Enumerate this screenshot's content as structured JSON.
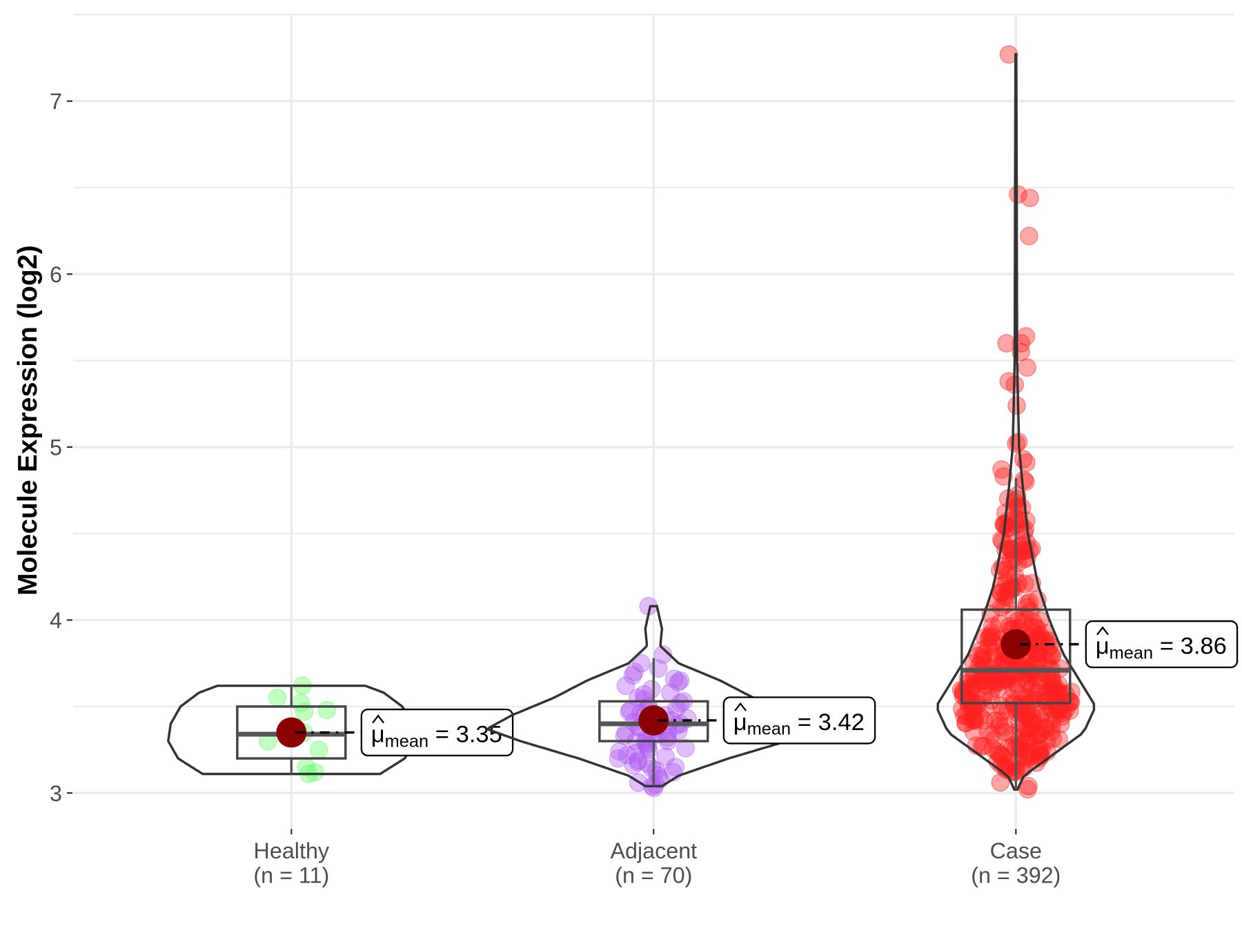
{
  "chart_data": {
    "type": "violin",
    "title": "",
    "xlabel": "",
    "ylabel": "Molecule Expression (log2)",
    "ylim": [
      2.8,
      7.5
    ],
    "yticks": [
      3,
      4,
      5,
      6,
      7
    ],
    "grid": true,
    "groups": [
      {
        "name": "Healthy",
        "n_label": "(n = 11)",
        "color": "#66ff66",
        "mean": 3.35,
        "mean_label": "= 3.35",
        "box": {
          "q1": 3.2,
          "median": 3.34,
          "q3": 3.5,
          "lo": 3.11,
          "hi": 3.62
        },
        "violin_max_halfwidth": 0.34,
        "violin": [
          [
            3.11,
            0.72
          ],
          [
            3.2,
            0.92
          ],
          [
            3.3,
            1.0
          ],
          [
            3.4,
            0.98
          ],
          [
            3.5,
            0.9
          ],
          [
            3.58,
            0.75
          ],
          [
            3.62,
            0.6
          ]
        ],
        "points": [
          3.62,
          3.55,
          3.52,
          3.48,
          3.47,
          3.35,
          3.3,
          3.25,
          3.15,
          3.12,
          3.11
        ],
        "n": 11
      },
      {
        "name": "Adjacent",
        "n_label": "(n = 70)",
        "color": "#b05cf0",
        "mean": 3.42,
        "mean_label": "= 3.42",
        "box": {
          "q1": 3.3,
          "median": 3.4,
          "q3": 3.53,
          "lo": 3.04,
          "hi": 3.78
        },
        "violin_max_halfwidth": 0.46,
        "violin": [
          [
            3.04,
            0.05
          ],
          [
            3.1,
            0.15
          ],
          [
            3.2,
            0.45
          ],
          [
            3.3,
            0.8
          ],
          [
            3.37,
            1.0
          ],
          [
            3.45,
            0.85
          ],
          [
            3.55,
            0.6
          ],
          [
            3.65,
            0.4
          ],
          [
            3.75,
            0.15
          ],
          [
            3.85,
            0.04
          ],
          [
            3.95,
            0.05
          ],
          [
            4.08,
            0.02
          ]
        ],
        "points": [
          4.08,
          3.8,
          3.75,
          3.72,
          3.7,
          3.68,
          3.66,
          3.65,
          3.64,
          3.62,
          3.6,
          3.58,
          3.57,
          3.55,
          3.54,
          3.53,
          3.52,
          3.5,
          3.5,
          3.49,
          3.48,
          3.47,
          3.46,
          3.45,
          3.44,
          3.43,
          3.42,
          3.42,
          3.41,
          3.4,
          3.4,
          3.39,
          3.38,
          3.37,
          3.36,
          3.35,
          3.35,
          3.34,
          3.33,
          3.32,
          3.31,
          3.3,
          3.3,
          3.29,
          3.28,
          3.27,
          3.26,
          3.25,
          3.24,
          3.23,
          3.22,
          3.21,
          3.2,
          3.19,
          3.18,
          3.17,
          3.16,
          3.15,
          3.14,
          3.13,
          3.12,
          3.1,
          3.08,
          3.06,
          3.05,
          3.04,
          3.03,
          3.45,
          3.38,
          3.33
        ],
        "n": 70
      },
      {
        "name": "Case",
        "n_label": "(n = 392)",
        "color": "#ff2020",
        "mean": 3.86,
        "mean_label": "= 3.86",
        "box": {
          "q1": 3.52,
          "median": 3.71,
          "q3": 4.06,
          "lo": 3.02,
          "hi": 4.82
        },
        "violin_max_halfwidth": 0.22,
        "violin": [
          [
            3.02,
            0.02
          ],
          [
            3.1,
            0.1
          ],
          [
            3.2,
            0.4
          ],
          [
            3.35,
            0.85
          ],
          [
            3.5,
            1.0
          ],
          [
            3.65,
            0.8
          ],
          [
            3.8,
            0.6
          ],
          [
            4.0,
            0.42
          ],
          [
            4.2,
            0.28
          ],
          [
            4.5,
            0.15
          ],
          [
            4.8,
            0.08
          ],
          [
            5.0,
            0.04
          ],
          [
            5.5,
            0.015
          ],
          [
            6.5,
            0.01
          ],
          [
            7.27,
            0.005
          ]
        ],
        "outliers": [
          7.27,
          6.46,
          6.44,
          6.22,
          5.64,
          5.6,
          5.6,
          5.55,
          5.46,
          5.38,
          5.36,
          5.24,
          5.03,
          5.02,
          4.93,
          4.91,
          4.87,
          4.83,
          4.81,
          4.8,
          4.72,
          4.7,
          4.66,
          4.62,
          4.57,
          4.55,
          4.5,
          4.45,
          4.43,
          4.4
        ],
        "n": 392
      }
    ],
    "mean_symbol": "μ",
    "mean_subscript": "mean"
  }
}
